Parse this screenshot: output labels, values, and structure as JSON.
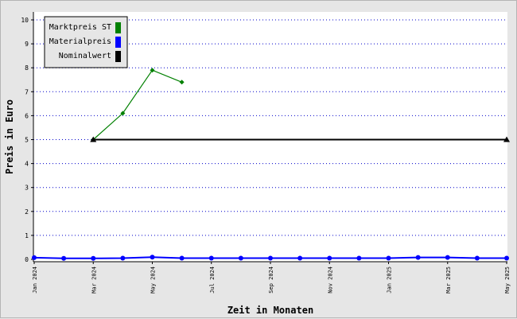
{
  "chart_data": {
    "type": "line",
    "xlabel": "Zeit in Monaten",
    "ylabel": "Preis in Euro",
    "ylim": [
      0,
      10
    ],
    "yticks": [
      0,
      1,
      2,
      3,
      4,
      5,
      6,
      7,
      8,
      9,
      10
    ],
    "grid": "horizontal dotted",
    "legend_position": "top-left",
    "x_tick_labels": [
      "Jan 2024",
      "Mar 2024",
      "May 2024",
      "Jul 2024",
      "Sep 2024",
      "Nov 2024",
      "Jan 2025",
      "Mar 2025",
      "May 2025"
    ],
    "x_tick_months": [
      0,
      2,
      4,
      6,
      8,
      10,
      12,
      14,
      16
    ],
    "x_range_months": [
      0,
      16
    ],
    "series": [
      {
        "name": "Marktpreis ST",
        "color": "#008000",
        "marker": "diamond",
        "points": [
          [
            2,
            5.0
          ],
          [
            3,
            6.1
          ],
          [
            4,
            7.9
          ],
          [
            5,
            7.4
          ]
        ]
      },
      {
        "name": "Materialpreis",
        "color": "#0000ff",
        "marker": "circle",
        "points": [
          [
            0,
            0.07
          ],
          [
            1,
            0.04
          ],
          [
            2,
            0.04
          ],
          [
            3,
            0.05
          ],
          [
            4,
            0.09
          ],
          [
            5,
            0.05
          ],
          [
            6,
            0.05
          ],
          [
            7,
            0.05
          ],
          [
            8,
            0.05
          ],
          [
            9,
            0.05
          ],
          [
            10,
            0.05
          ],
          [
            11,
            0.05
          ],
          [
            12,
            0.05
          ],
          [
            13,
            0.08
          ],
          [
            14,
            0.08
          ],
          [
            15,
            0.05
          ],
          [
            16,
            0.05
          ]
        ]
      },
      {
        "name": "Nominalwert",
        "color": "#000000",
        "marker": "triangle",
        "points": [
          [
            2,
            5.0
          ],
          [
            16,
            5.0
          ]
        ]
      }
    ]
  }
}
